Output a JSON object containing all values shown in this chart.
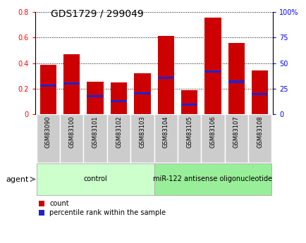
{
  "title": "GDS1729 / 299049",
  "samples": [
    "GSM83090",
    "GSM83100",
    "GSM83101",
    "GSM83102",
    "GSM83103",
    "GSM83104",
    "GSM83105",
    "GSM83106",
    "GSM83107",
    "GSM83108"
  ],
  "count_values": [
    0.39,
    0.47,
    0.255,
    0.25,
    0.32,
    0.615,
    0.19,
    0.755,
    0.56,
    0.345
  ],
  "percentile_values": [
    0.225,
    0.24,
    0.14,
    0.105,
    0.165,
    0.285,
    0.075,
    0.335,
    0.255,
    0.16
  ],
  "groups": [
    {
      "label": "control",
      "start": 0,
      "end": 5,
      "color": "#ccffcc"
    },
    {
      "label": "miR-122 antisense oligonucleotide",
      "start": 5,
      "end": 10,
      "color": "#99ee99"
    }
  ],
  "bar_color": "#cc0000",
  "blue_color": "#2222cc",
  "bar_width": 0.7,
  "ylim_left": [
    0,
    0.8
  ],
  "ylim_right": [
    0,
    100
  ],
  "yticks_left": [
    0,
    0.2,
    0.4,
    0.6,
    0.8
  ],
  "ytick_labels_left": [
    "0",
    "0.2",
    "0.4",
    "0.6",
    "0.8"
  ],
  "yticks_right": [
    0,
    25,
    50,
    75,
    100
  ],
  "ytick_labels_right": [
    "0",
    "25",
    "50",
    "75",
    "100%"
  ],
  "tick_label_bg": "#cccccc",
  "legend_count_label": "count",
  "legend_pct_label": "percentile rank within the sample",
  "agent_label": "agent",
  "title_fontsize": 10,
  "tick_fontsize": 7,
  "label_fontsize": 7.5
}
